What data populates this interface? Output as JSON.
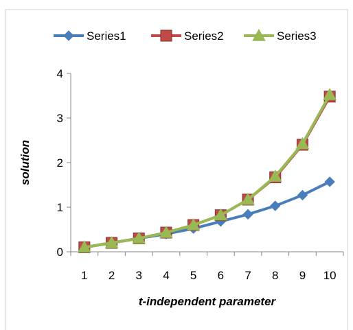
{
  "chart_data": {
    "type": "line",
    "title": "",
    "xlabel": "t-independent parameter",
    "ylabel": "solution",
    "categories": [
      "1",
      "2",
      "3",
      "4",
      "5",
      "6",
      "7",
      "8",
      "9",
      "10"
    ],
    "ylim": [
      0,
      4
    ],
    "yticks": [
      "0",
      "1",
      "2",
      "3",
      "4"
    ],
    "grid": false,
    "legend": "top",
    "series": [
      {
        "name": "Series1",
        "color": "#4a7ebb",
        "marker": "diamond",
        "values": [
          0.1,
          0.2,
          0.3,
          0.4,
          0.52,
          0.68,
          0.84,
          1.03,
          1.27,
          1.57
        ]
      },
      {
        "name": "Series2",
        "color": "#be4b48",
        "marker": "square",
        "values": [
          0.1,
          0.2,
          0.3,
          0.43,
          0.6,
          0.82,
          1.17,
          1.67,
          2.4,
          3.48
        ]
      },
      {
        "name": "Series3",
        "color": "#98b954",
        "marker": "triangle",
        "values": [
          0.1,
          0.2,
          0.3,
          0.43,
          0.6,
          0.82,
          1.17,
          1.69,
          2.42,
          3.52
        ]
      }
    ]
  }
}
